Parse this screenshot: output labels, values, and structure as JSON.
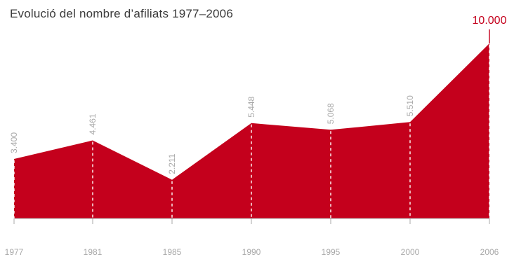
{
  "chart_data": {
    "type": "area",
    "title": "Evolució del nombre d’afiliats 1977–2006",
    "xlabel": "",
    "ylabel": "",
    "categories": [
      "1977",
      "1981",
      "1985",
      "1990",
      "1995",
      "2000",
      "2006"
    ],
    "values": [
      3400,
      4461,
      2211,
      5448,
      5068,
      5510,
      10000
    ],
    "value_labels": [
      "3.400",
      "4.461",
      "2.211",
      "5.448",
      "5.068",
      "5.510",
      "10.000"
    ],
    "ylim": [
      0,
      10000
    ],
    "grid": false,
    "legend": "none",
    "colors": {
      "fill": "#c4001c",
      "highlight_label": "#c4001c",
      "label": "#a9a9a9",
      "axis": "#a9a9a9",
      "dashed_line": "#ffffff"
    }
  }
}
